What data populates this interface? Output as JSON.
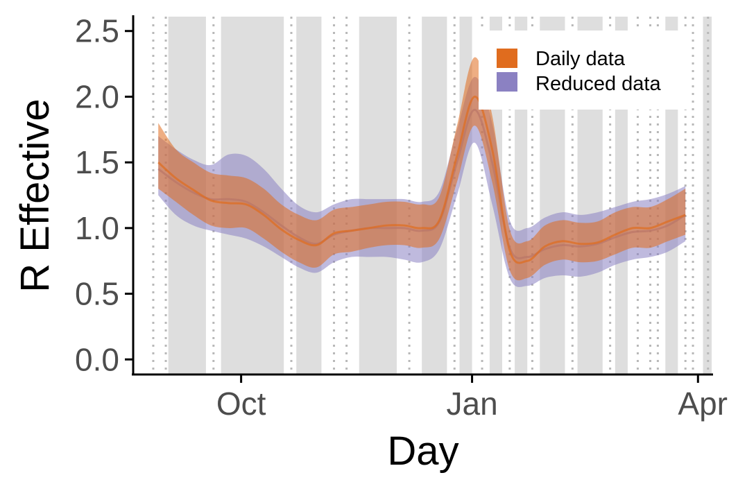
{
  "chart_data": {
    "type": "area",
    "title": "",
    "xlabel": "Day",
    "ylabel": "R Effective",
    "x_tick_labels": [
      "Oct",
      "Jan",
      "Apr"
    ],
    "x_ticks": [
      "2020-10-01",
      "2021-01-01",
      "2021-04-01"
    ],
    "xlim": [
      "2020-08-19",
      "2021-04-07"
    ],
    "y_ticks": [
      0.0,
      0.5,
      1.0,
      1.5,
      2.0,
      2.5
    ],
    "y_tick_labels": [
      "0.0",
      "0.5",
      "1.0",
      "1.5",
      "2.0",
      "2.5"
    ],
    "ylim": [
      -0.12,
      2.62
    ],
    "grid": false,
    "legend_position": "top-right",
    "shaded_periods": [
      [
        "2020-09-02",
        "2020-09-17"
      ],
      [
        "2020-09-23",
        "2020-10-18"
      ],
      [
        "2020-10-23",
        "2020-11-02"
      ],
      [
        "2020-11-17",
        "2020-12-02"
      ],
      [
        "2020-12-12",
        "2020-12-22"
      ],
      [
        "2020-12-27",
        "2021-01-01"
      ],
      [
        "2021-01-08",
        "2021-01-13"
      ],
      [
        "2021-01-18",
        "2021-01-23"
      ],
      [
        "2021-01-28",
        "2021-02-07"
      ],
      [
        "2021-02-12",
        "2021-02-22"
      ],
      [
        "2021-02-27",
        "2021-03-04"
      ],
      [
        "2021-03-19",
        "2021-03-24"
      ],
      [
        "2021-04-03",
        "2021-04-08"
      ]
    ],
    "dotted_lines": [
      "2020-08-27",
      "2020-09-01",
      "2020-09-20",
      "2020-10-21",
      "2020-11-07",
      "2020-11-12",
      "2020-12-07",
      "2020-12-25",
      "2021-01-05",
      "2021-01-16",
      "2021-01-25",
      "2021-02-10",
      "2021-02-25",
      "2021-03-08",
      "2021-03-13",
      "2021-03-16",
      "2021-03-27",
      "2021-03-30",
      "2021-04-05",
      "2021-04-12",
      "2021-04-15"
    ],
    "series": [
      {
        "name": "Daily data",
        "color": "#e06c1e",
        "x": [
          "2020-08-29",
          "2020-09-05",
          "2020-09-12",
          "2020-09-19",
          "2020-09-26",
          "2020-10-03",
          "2020-10-10",
          "2020-10-17",
          "2020-10-24",
          "2020-10-31",
          "2020-11-07",
          "2020-11-14",
          "2020-11-21",
          "2020-11-28",
          "2020-12-05",
          "2020-12-12",
          "2020-12-19",
          "2020-12-26",
          "2021-01-02",
          "2021-01-09",
          "2021-01-16",
          "2021-01-23",
          "2021-01-30",
          "2021-02-06",
          "2021-02-13",
          "2021-02-20",
          "2021-02-27",
          "2021-03-06",
          "2021-03-13",
          "2021-03-20",
          "2021-03-27"
        ],
        "y": [
          1.5,
          1.38,
          1.29,
          1.21,
          1.19,
          1.18,
          1.1,
          0.99,
          0.91,
          0.87,
          0.96,
          0.98,
          1.0,
          1.02,
          1.02,
          1.0,
          1.06,
          1.55,
          2.0,
          1.6,
          0.83,
          0.75,
          0.86,
          0.9,
          0.88,
          0.89,
          0.95,
          1.0,
          1.0,
          1.05,
          1.1
        ],
        "lower": [
          1.3,
          1.2,
          1.1,
          1.02,
          1.0,
          1.0,
          0.92,
          0.82,
          0.74,
          0.7,
          0.8,
          0.82,
          0.85,
          0.87,
          0.87,
          0.85,
          0.92,
          1.35,
          1.78,
          1.35,
          0.68,
          0.62,
          0.72,
          0.76,
          0.74,
          0.75,
          0.8,
          0.85,
          0.85,
          0.9,
          0.95
        ],
        "upper": [
          1.8,
          1.6,
          1.5,
          1.42,
          1.4,
          1.38,
          1.3,
          1.18,
          1.1,
          1.06,
          1.14,
          1.16,
          1.18,
          1.2,
          1.2,
          1.18,
          1.24,
          1.78,
          2.3,
          1.86,
          0.99,
          0.9,
          1.02,
          1.06,
          1.04,
          1.05,
          1.12,
          1.16,
          1.16,
          1.22,
          1.3
        ]
      },
      {
        "name": "Reduced data",
        "color": "#8b81c2",
        "x": [
          "2020-08-29",
          "2020-09-05",
          "2020-09-12",
          "2020-09-19",
          "2020-09-26",
          "2020-10-03",
          "2020-10-10",
          "2020-10-17",
          "2020-10-24",
          "2020-10-31",
          "2020-11-07",
          "2020-11-14",
          "2020-11-21",
          "2020-11-28",
          "2020-12-05",
          "2020-12-12",
          "2020-12-19",
          "2020-12-26",
          "2021-01-02",
          "2021-01-09",
          "2021-01-16",
          "2021-01-23",
          "2021-01-30",
          "2021-02-06",
          "2021-02-13",
          "2021-02-20",
          "2021-02-27",
          "2021-03-06",
          "2021-03-13",
          "2021-03-20",
          "2021-03-27"
        ],
        "y": [
          1.45,
          1.35,
          1.27,
          1.22,
          1.22,
          1.2,
          1.12,
          1.02,
          0.93,
          0.88,
          0.95,
          0.98,
          1.0,
          1.0,
          1.0,
          0.98,
          1.05,
          1.5,
          1.9,
          1.5,
          0.85,
          0.78,
          0.84,
          0.87,
          0.86,
          0.88,
          0.93,
          0.97,
          0.98,
          1.02,
          1.1
        ],
        "lower": [
          1.25,
          1.1,
          1.02,
          0.98,
          0.95,
          0.92,
          0.86,
          0.78,
          0.7,
          0.66,
          0.74,
          0.78,
          0.78,
          0.78,
          0.76,
          0.74,
          0.84,
          1.25,
          1.65,
          1.18,
          0.62,
          0.56,
          0.62,
          0.64,
          0.63,
          0.66,
          0.72,
          0.76,
          0.78,
          0.82,
          0.9
        ],
        "upper": [
          1.7,
          1.6,
          1.52,
          1.48,
          1.56,
          1.55,
          1.45,
          1.3,
          1.17,
          1.12,
          1.18,
          1.22,
          1.22,
          1.22,
          1.22,
          1.2,
          1.28,
          1.75,
          2.15,
          1.8,
          1.06,
          1.0,
          1.08,
          1.12,
          1.1,
          1.12,
          1.16,
          1.2,
          1.22,
          1.26,
          1.32
        ]
      }
    ]
  }
}
